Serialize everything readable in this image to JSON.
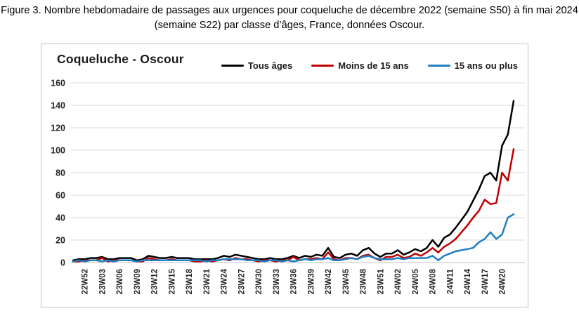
{
  "figure": {
    "caption_line1": "Figure 3. Nombre hebdomadaire de passages aux urgences pour coqueluche de décembre 2022 (semaine S50) à fin mai 2024",
    "caption_line2": "(semaine S22) par classe d’âges, France, données Oscour."
  },
  "colors": {
    "grid": "#D9D9D9",
    "axis": "#BFBFBF",
    "chart_border": "#C3C3C3",
    "series_black": "#000000",
    "series_red": "#C00000",
    "series_blue": "#1F7EC4"
  },
  "chart_data": {
    "type": "line",
    "title": "Coqueluche - Oscour",
    "xlabel": "",
    "ylabel": "",
    "ylim": [
      0,
      160
    ],
    "yticks": [
      0,
      20,
      40,
      60,
      80,
      100,
      120,
      140,
      160
    ],
    "grid": "horizontal",
    "legend_position": "top",
    "x": [
      "22W50",
      "22W51",
      "22W52",
      "23W01",
      "23W02",
      "23W03",
      "23W04",
      "23W05",
      "23W06",
      "23W07",
      "23W08",
      "23W09",
      "23W10",
      "23W11",
      "23W12",
      "23W13",
      "23W14",
      "23W15",
      "23W16",
      "23W17",
      "23W18",
      "23W19",
      "23W20",
      "23W21",
      "23W22",
      "23W23",
      "23W24",
      "23W25",
      "23W26",
      "23W27",
      "23W28",
      "23W29",
      "23W30",
      "23W31",
      "23W32",
      "23W33",
      "23W34",
      "23W35",
      "23W36",
      "23W37",
      "23W38",
      "23W39",
      "23W40",
      "23W41",
      "23W42",
      "23W43",
      "23W44",
      "23W45",
      "23W46",
      "23W47",
      "23W48",
      "23W49",
      "23W50",
      "23W51",
      "23W52",
      "24W01",
      "24W02",
      "24W03",
      "24W04",
      "24W05",
      "24W06",
      "24W07",
      "24W08",
      "24W09",
      "24W10",
      "24W11",
      "24W12",
      "24W13",
      "24W14",
      "24W15",
      "24W16",
      "24W17",
      "24W18",
      "24W19",
      "24W20",
      "24W21",
      "24W22"
    ],
    "x_tick_labels": [
      "22W52",
      "23W03",
      "23W06",
      "23W09",
      "23W12",
      "23W15",
      "23W18",
      "23W21",
      "23W24",
      "23W27",
      "23W30",
      "23W33",
      "23W36",
      "23W39",
      "23W42",
      "23W45",
      "23W48",
      "23W51",
      "24W02",
      "24W05",
      "24W08",
      "24W11",
      "24W14",
      "24W17",
      "24W20"
    ],
    "tick_start_index": 2,
    "tick_every": 3,
    "series": [
      {
        "name": "Tous âges",
        "color": "#000000",
        "values": [
          2,
          3,
          3,
          4,
          4,
          5,
          3,
          3,
          4,
          4,
          4,
          2,
          3,
          6,
          5,
          4,
          4,
          5,
          4,
          4,
          4,
          3,
          3,
          3,
          3,
          4,
          6,
          5,
          7,
          6,
          5,
          4,
          3,
          3,
          4,
          3,
          3,
          4,
          6,
          4,
          6,
          5,
          7,
          6,
          13,
          5,
          4,
          7,
          8,
          6,
          11,
          13,
          8,
          5,
          8,
          8,
          11,
          7,
          9,
          12,
          10,
          13,
          20,
          14,
          22,
          25,
          31,
          38,
          45,
          55,
          65,
          77,
          80,
          73,
          104,
          114,
          144
        ]
      },
      {
        "name": "Moins de 15 ans",
        "color": "#C00000",
        "values": [
          1,
          1,
          2,
          2,
          2,
          4,
          1,
          2,
          2,
          2,
          2,
          1,
          1,
          4,
          3,
          2,
          2,
          3,
          2,
          2,
          2,
          1,
          1,
          2,
          1,
          2,
          3,
          2,
          4,
          3,
          3,
          2,
          1,
          2,
          2,
          1,
          2,
          2,
          5,
          2,
          3,
          3,
          4,
          3,
          9,
          3,
          2,
          4,
          4,
          3,
          6,
          7,
          4,
          2,
          5,
          5,
          7,
          4,
          5,
          8,
          6,
          9,
          13,
          9,
          14,
          17,
          21,
          27,
          33,
          40,
          46,
          56,
          52,
          53,
          80,
          73,
          101
        ]
      },
      {
        "name": "15 ans ou plus",
        "color": "#1F7EC4",
        "values": [
          1,
          2,
          1,
          2,
          2,
          1,
          2,
          1,
          2,
          2,
          2,
          1,
          2,
          2,
          2,
          2,
          2,
          2,
          2,
          2,
          2,
          2,
          2,
          1,
          2,
          2,
          3,
          3,
          3,
          3,
          2,
          2,
          2,
          1,
          2,
          2,
          1,
          2,
          1,
          2,
          3,
          2,
          3,
          3,
          4,
          2,
          2,
          3,
          4,
          3,
          5,
          6,
          4,
          3,
          3,
          3,
          4,
          3,
          4,
          4,
          4,
          4,
          6,
          2,
          6,
          8,
          10,
          11,
          12,
          13,
          18,
          21,
          27,
          21,
          25,
          40,
          43
        ]
      }
    ]
  }
}
